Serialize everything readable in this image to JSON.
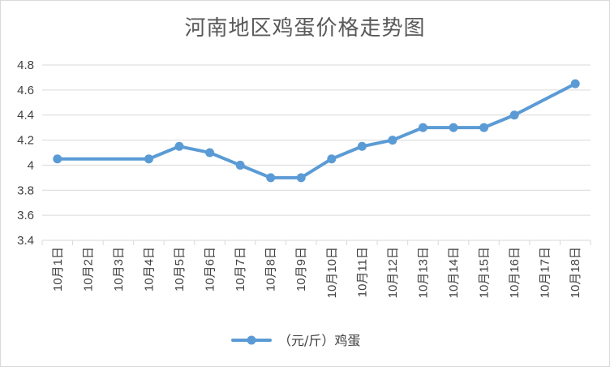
{
  "chart_data": {
    "type": "line",
    "title": "河南地区鸡蛋价格走势图",
    "categories": [
      "10月1日",
      "10月2日",
      "10月3日",
      "10月4日",
      "10月5日",
      "10月6日",
      "10月7日",
      "10月8日",
      "10月9日",
      "10月10日",
      "10月11日",
      "10月12日",
      "10月13日",
      "10月14日",
      "10月15日",
      "10月16日",
      "10月17日",
      "10月18日"
    ],
    "series": [
      {
        "name": "（元/斤）鸡蛋",
        "points": [
          {
            "cat": 0,
            "value": 4.05
          },
          {
            "cat": 3,
            "value": 4.05
          },
          {
            "cat": 4,
            "value": 4.15
          },
          {
            "cat": 5,
            "value": 4.1
          },
          {
            "cat": 6,
            "value": 4.0
          },
          {
            "cat": 7,
            "value": 3.9
          },
          {
            "cat": 8,
            "value": 3.9
          },
          {
            "cat": 9,
            "value": 4.05
          },
          {
            "cat": 10,
            "value": 4.15
          },
          {
            "cat": 11,
            "value": 4.2
          },
          {
            "cat": 12,
            "value": 4.3
          },
          {
            "cat": 13,
            "value": 4.3
          },
          {
            "cat": 14,
            "value": 4.3
          },
          {
            "cat": 15,
            "value": 4.4
          },
          {
            "cat": 17,
            "value": 4.65
          }
        ]
      }
    ],
    "ylim": [
      3.4,
      4.8
    ],
    "yticks": [
      "3.4",
      "3.6",
      "3.8",
      "4",
      "4.2",
      "4.4",
      "4.6",
      "4.8"
    ],
    "grid": true,
    "legend_position": "bottom",
    "colors": {
      "line": "#5b9bd5",
      "grid": "#d9d9d9",
      "text": "#595959"
    }
  }
}
